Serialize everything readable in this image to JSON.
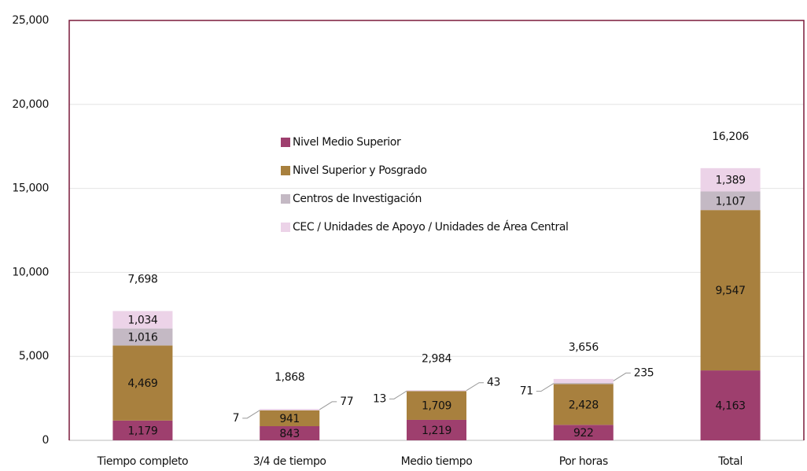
{
  "chart_data": {
    "type": "stacked_bar",
    "categories": [
      "Tiempo completo",
      "3/4 de tiempo",
      "Medio tiempo",
      "Por horas",
      "Total"
    ],
    "series": [
      {
        "name": "Nivel Medio Superior",
        "color": "#9e3f6e",
        "values": [
          1179,
          843,
          1219,
          922,
          4163
        ],
        "value_labels": [
          "1,179",
          "843",
          "1,219",
          "922",
          "4,163"
        ]
      },
      {
        "name": "Nivel Superior y Posgrado",
        "color": "#a8803e",
        "values": [
          4469,
          941,
          1709,
          2428,
          9547
        ],
        "value_labels": [
          "4,469",
          "941",
          "1,709",
          "2,428",
          "9,547"
        ]
      },
      {
        "name": "Centros de Investigación",
        "color": "#c4b9c4",
        "values": [
          1016,
          7,
          13,
          71,
          1107
        ],
        "value_labels": [
          "1,016",
          "7",
          "13",
          "71",
          "1,107"
        ]
      },
      {
        "name": "CEC / Unidades de Apoyo / Unidades de Área Central",
        "color": "#ecd3e8",
        "values": [
          1034,
          77,
          43,
          235,
          1389
        ],
        "value_labels": [
          "1,034",
          "77",
          "43",
          "235",
          "1,389"
        ]
      }
    ],
    "totals": [
      7698,
      1868,
      2984,
      3656,
      16206
    ],
    "total_labels": [
      "7,698",
      "1,868",
      "2,984",
      "3,656",
      "16,206"
    ],
    "ylim": [
      0,
      25000
    ],
    "yticks": [
      0,
      {
        "value": 5000,
        "label": "5,000"
      },
      {
        "value": 10000,
        "label": "10,000"
      },
      {
        "value": 15000,
        "label": "15,000"
      },
      {
        "value": 20000,
        "label": "20,000"
      },
      {
        "value": 25000,
        "label": "25,000"
      }
    ],
    "grid": true
  }
}
